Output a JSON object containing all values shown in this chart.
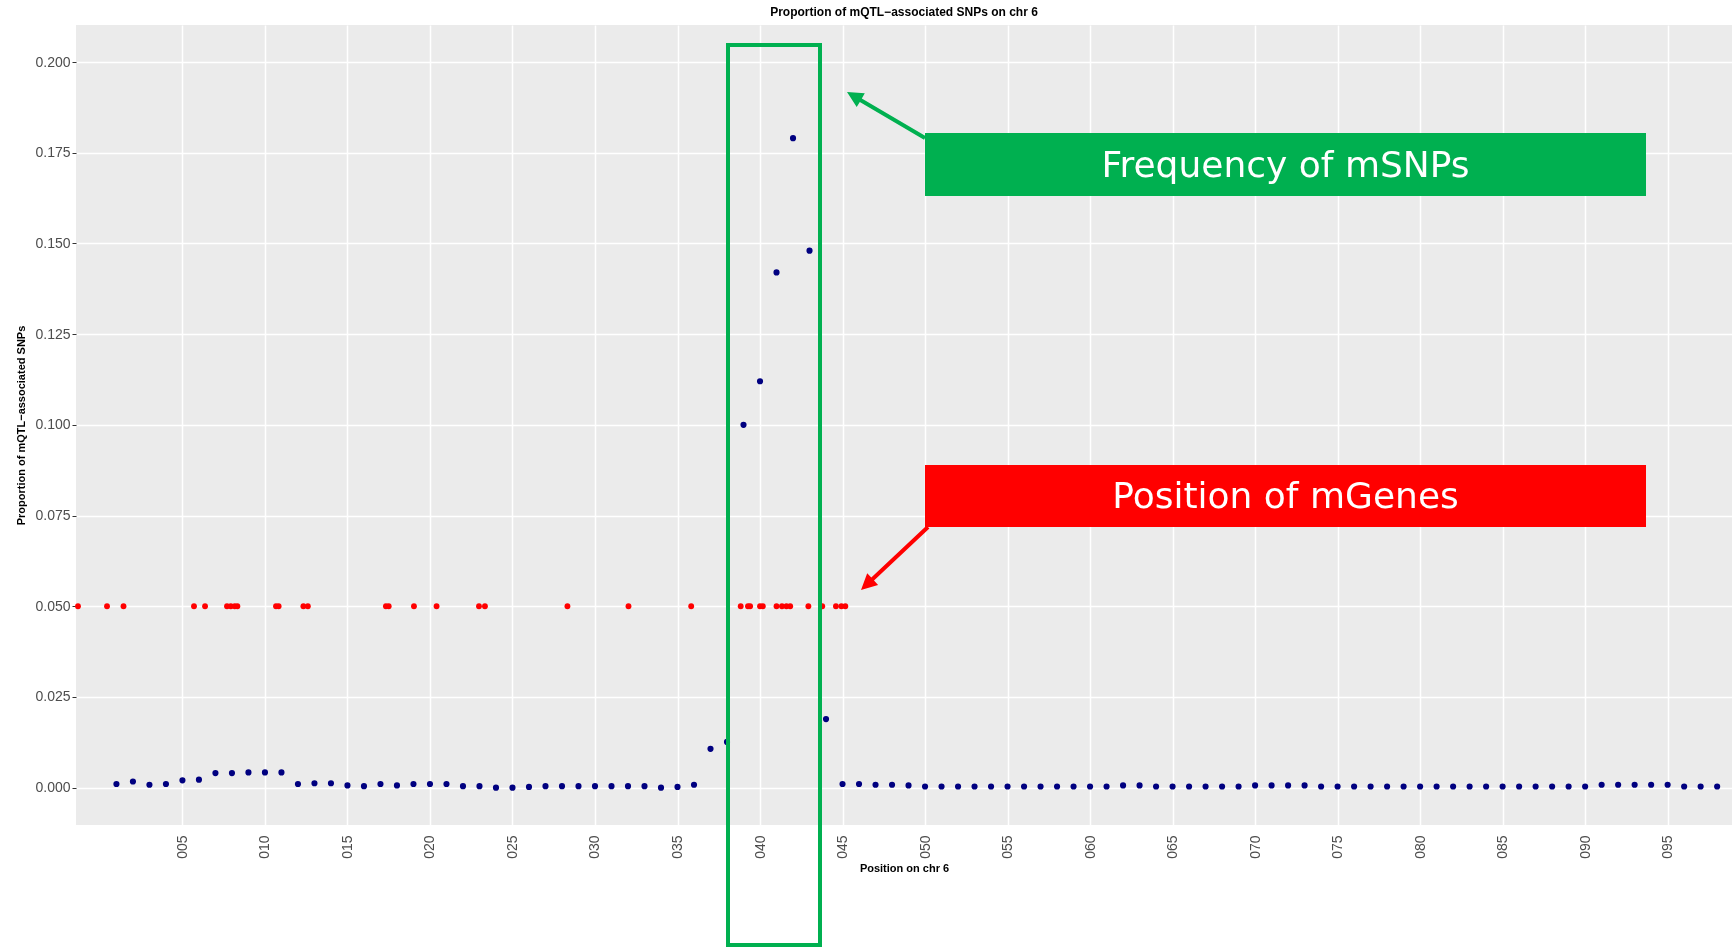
{
  "chart_data": {
    "type": "scatter",
    "title": "Proportion of mQTL−associated SNPs on chr 6",
    "xlabel": "Position on chr 6",
    "ylabel": "Proportion of mQTL−associated SNPs",
    "xlim": [
      -1.45,
      98.9
    ],
    "ylim": [
      -0.0103,
      0.2102
    ],
    "xticks": [
      {
        "value": 5,
        "label": "005"
      },
      {
        "value": 10,
        "label": "010"
      },
      {
        "value": 15,
        "label": "015"
      },
      {
        "value": 20,
        "label": "020"
      },
      {
        "value": 25,
        "label": "025"
      },
      {
        "value": 30,
        "label": "030"
      },
      {
        "value": 35,
        "label": "035"
      },
      {
        "value": 40,
        "label": "040"
      },
      {
        "value": 45,
        "label": "045"
      },
      {
        "value": 50,
        "label": "050"
      },
      {
        "value": 55,
        "label": "055"
      },
      {
        "value": 60,
        "label": "060"
      },
      {
        "value": 65,
        "label": "065"
      },
      {
        "value": 70,
        "label": "070"
      },
      {
        "value": 75,
        "label": "075"
      },
      {
        "value": 80,
        "label": "080"
      },
      {
        "value": 85,
        "label": "085"
      },
      {
        "value": 90,
        "label": "090"
      },
      {
        "value": 95,
        "label": "095"
      }
    ],
    "yticks": [
      {
        "value": 0,
        "label": "0.000"
      },
      {
        "value": 0.025,
        "label": "0.025"
      },
      {
        "value": 0.05,
        "label": "0.050"
      },
      {
        "value": 0.075,
        "label": "0.075"
      },
      {
        "value": 0.1,
        "label": "0.100"
      },
      {
        "value": 0.125,
        "label": "0.125"
      },
      {
        "value": 0.15,
        "label": "0.150"
      },
      {
        "value": 0.175,
        "label": "0.175"
      },
      {
        "value": 0.2,
        "label": "0.200"
      }
    ],
    "grid": true,
    "marker": "circle",
    "series": [
      {
        "color": "#000080",
        "x": [
          1,
          2,
          3,
          4,
          5,
          6,
          7,
          8,
          9,
          10,
          11,
          12,
          13,
          14,
          15,
          16,
          17,
          18,
          19,
          20,
          21,
          22,
          23,
          24,
          25,
          26,
          27,
          28,
          29,
          30,
          31,
          32,
          33,
          34,
          35,
          36,
          37,
          38,
          39,
          40,
          41,
          42,
          43,
          44,
          45,
          46,
          47,
          48,
          49,
          50,
          51,
          52,
          53,
          54,
          55,
          56,
          57,
          58,
          59,
          60,
          61,
          62,
          63,
          64,
          65,
          66,
          67,
          68,
          69,
          70,
          71,
          72,
          73,
          74,
          75,
          76,
          77,
          78,
          79,
          80,
          81,
          82,
          83,
          84,
          85,
          86,
          87,
          88,
          89,
          90,
          91,
          92,
          93,
          94,
          95,
          96,
          97,
          98
        ],
        "values": [
          0.001,
          0.0017,
          0.0008,
          0.001,
          0.002,
          0.0022,
          0.004,
          0.004,
          0.0042,
          0.0042,
          0.0042,
          0.001,
          0.0012,
          0.0012,
          0.0006,
          0.0004,
          0.001,
          0.0006,
          0.001,
          0.001,
          0.001,
          0.0004,
          0.0004,
          0,
          0,
          0.0002,
          0.0004,
          0.0004,
          0.0004,
          0.0004,
          0.0004,
          0.0004,
          0.0004,
          0,
          0.0002,
          0.0008,
          0.0107,
          0.0126,
          0.1,
          0.112,
          0.142,
          0.179,
          0.148,
          0.0189,
          0.001,
          0.001,
          0.0008,
          0.0008,
          0.0006,
          0.0003,
          0.0003,
          0.0003,
          0.0003,
          0.0003,
          0.0003,
          0.0003,
          0.0003,
          0.0003,
          0.0003,
          0.0003,
          0.0003,
          0.0006,
          0.0006,
          0.0003,
          0.0003,
          0.0003,
          0.0003,
          0.0003,
          0.0003,
          0.0006,
          0.0006,
          0.0006,
          0.0006,
          0.0003,
          0.0003,
          0.0003,
          0.0003,
          0.0003,
          0.0003,
          0.0003,
          0.0003,
          0.0003,
          0.0003,
          0.0003,
          0.0003,
          0.0003,
          0.0003,
          0.0003,
          0.0003,
          0.0003,
          0.0008,
          0.0008,
          0.0008,
          0.0008,
          0.0008,
          0.0003,
          0.0003,
          0.0003
        ]
      },
      {
        "color": "#ff0000",
        "x": [
          -1.33,
          0.43,
          1.43,
          5.7,
          6.37,
          7.7,
          7.93,
          8.17,
          8.33,
          10.67,
          10.83,
          12.33,
          12.6,
          17.33,
          17.5,
          19.03,
          20.4,
          22.97,
          23.33,
          28.33,
          32.03,
          35.83,
          38.83,
          39.27,
          39.4,
          40.0,
          40.17,
          41.0,
          41.33,
          41.6,
          41.83,
          42.93,
          43.77,
          44.6,
          44.93,
          45.17
        ],
        "values": [
          0.05,
          0.05,
          0.05,
          0.05,
          0.05,
          0.05,
          0.05,
          0.05,
          0.05,
          0.05,
          0.05,
          0.05,
          0.05,
          0.05,
          0.05,
          0.05,
          0.05,
          0.05,
          0.05,
          0.05,
          0.05,
          0.05,
          0.05,
          0.05,
          0.05,
          0.05,
          0.05,
          0.05,
          0.05,
          0.05,
          0.05,
          0.05,
          0.05,
          0.05,
          0.05,
          0.05
        ]
      }
    ],
    "annotations": [
      "Frequency of mSNPs",
      "Position of mGenes"
    ]
  }
}
